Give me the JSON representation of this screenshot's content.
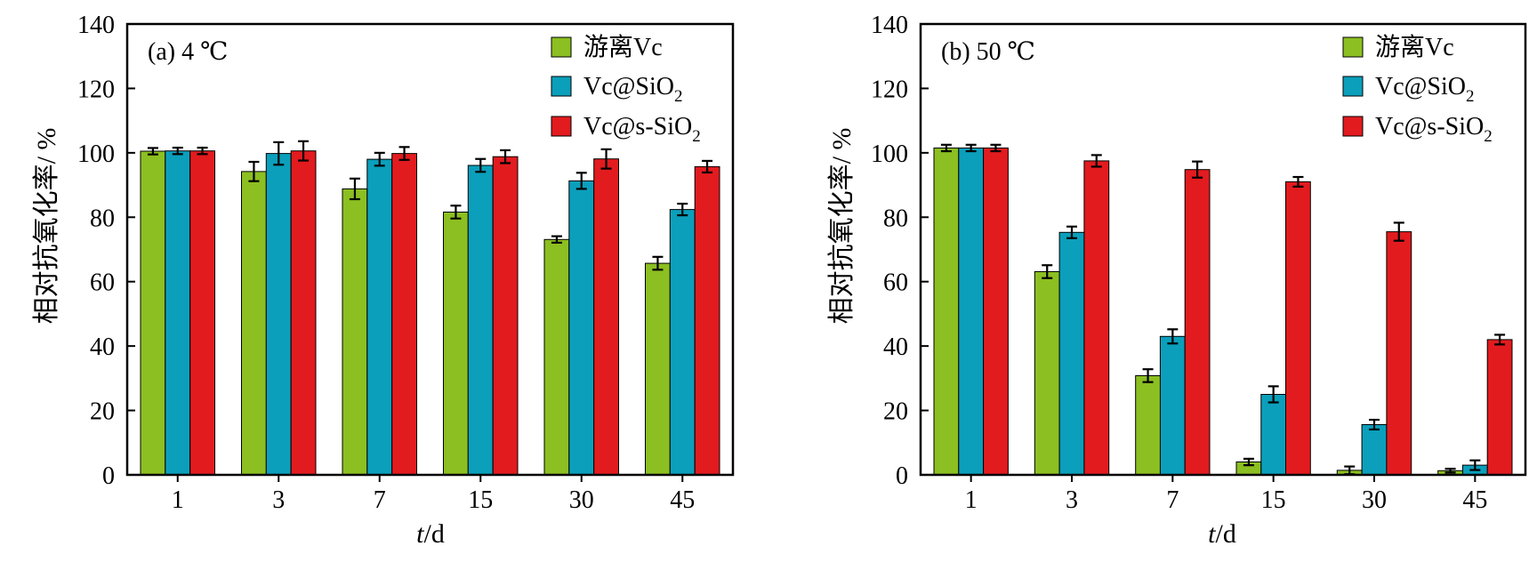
{
  "chart_data": [
    {
      "type": "bar",
      "panel_label": "(a)   4 ℃",
      "xlabel_italic": "t",
      "xlabel_unit": "/d",
      "ylabel": "相对抗氧化率/ %",
      "ylim": [
        0,
        140
      ],
      "yticks": [
        0,
        20,
        40,
        60,
        80,
        100,
        120,
        140
      ],
      "categories": [
        "1",
        "3",
        "7",
        "15",
        "30",
        "45"
      ],
      "legend_position": "top-right",
      "series": [
        {
          "name": "游离Vc",
          "values": [
            100.5,
            94.2,
            88.8,
            81.6,
            73.1,
            65.7
          ],
          "errors": [
            1.0,
            3.0,
            3.2,
            2.0,
            1.0,
            2.0
          ]
        },
        {
          "name_base": "Vc@SiO",
          "name_sub": "2",
          "values": [
            100.6,
            99.8,
            98.0,
            96.1,
            91.3,
            82.4
          ],
          "errors": [
            1.0,
            3.5,
            2.0,
            2.0,
            2.5,
            1.8
          ]
        },
        {
          "name_base": "Vc@s-SiO",
          "name_sub": "2",
          "values": [
            100.6,
            100.6,
            99.8,
            98.8,
            98.1,
            95.7
          ],
          "errors": [
            1.0,
            3.0,
            2.0,
            2.0,
            3.0,
            1.8
          ]
        }
      ]
    },
    {
      "type": "bar",
      "panel_label": "(b)   50 ℃",
      "xlabel_italic": "t",
      "xlabel_unit": "/d",
      "ylabel": "相对抗氧化率/ %",
      "ylim": [
        0,
        140
      ],
      "yticks": [
        0,
        20,
        40,
        60,
        80,
        100,
        120,
        140
      ],
      "categories": [
        "1",
        "3",
        "7",
        "15",
        "30",
        "45"
      ],
      "legend_position": "top-right",
      "series": [
        {
          "name": "游离Vc",
          "values": [
            101.5,
            63.1,
            30.8,
            4.0,
            1.4,
            1.3
          ],
          "errors": [
            1.0,
            2.0,
            2.0,
            1.0,
            1.2,
            0.6
          ]
        },
        {
          "name_base": "Vc@SiO",
          "name_sub": "2",
          "values": [
            101.5,
            75.3,
            43.0,
            25.0,
            15.6,
            3.0
          ],
          "errors": [
            1.0,
            1.8,
            2.2,
            2.5,
            1.5,
            1.5
          ]
        },
        {
          "name_base": "Vc@s-SiO",
          "name_sub": "2",
          "values": [
            101.5,
            97.5,
            94.8,
            91.0,
            75.5,
            42.0
          ],
          "errors": [
            1.0,
            1.8,
            2.5,
            1.5,
            2.8,
            1.5
          ]
        }
      ]
    }
  ],
  "colors": {
    "series": [
      "#8cbf21",
      "#0b9fbb",
      "#e21b1f"
    ],
    "axis": "#000000"
  }
}
